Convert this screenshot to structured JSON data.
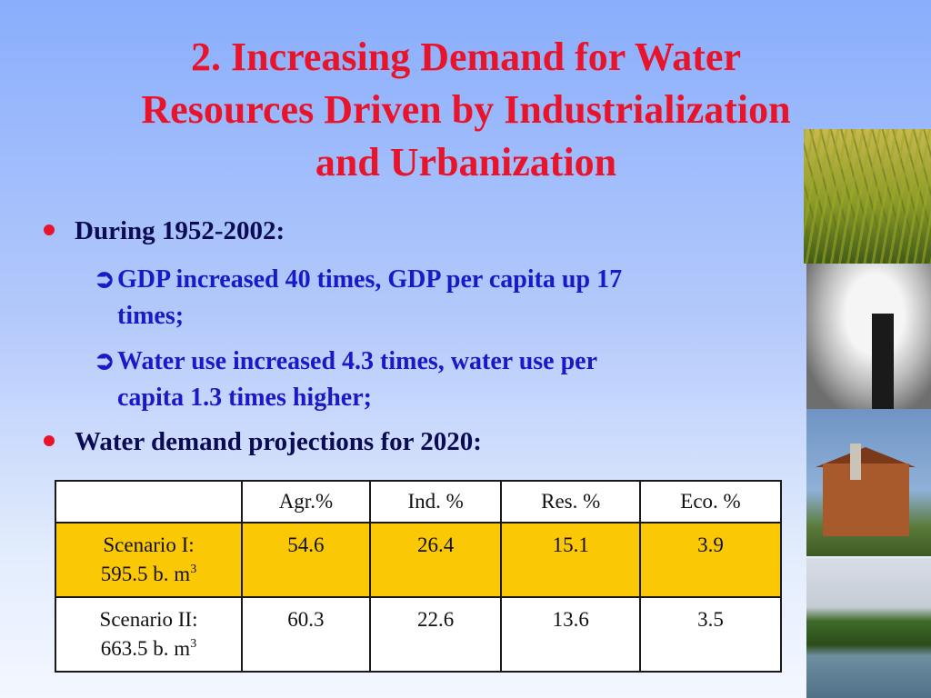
{
  "slide": {
    "title_lines": [
      "2. Increasing Demand for Water",
      "Resources Driven by Industrialization",
      "and Urbanization"
    ],
    "bullets": [
      {
        "text": "During 1952-2002:"
      },
      {
        "text": "Water demand projections for 2020:"
      }
    ],
    "sub_bullets": [
      {
        "line1": "GDP increased 40 times, GDP per capita up 17",
        "line2": "times;"
      },
      {
        "line1": "Water use increased 4.3 times, water use per",
        "line2": "capita  1.3 times higher;"
      }
    ],
    "colors": {
      "title": "#e8142b",
      "bullet_dot": "#e8142b",
      "sub_text": "#1919c8",
      "highlight_row": "#fbc805"
    }
  },
  "table": {
    "headers": [
      "",
      "Agr.%",
      "Ind. %",
      "Res. %",
      "Eco. %"
    ],
    "rows": [
      {
        "scenario": "Scenario I:",
        "volume": "595.5 b. m",
        "unit_exp": "3",
        "values": [
          "54.6",
          "26.4",
          "15.1",
          "3.9"
        ]
      },
      {
        "scenario": "Scenario II:",
        "volume": "663.5 b. m",
        "unit_exp": "3",
        "values": [
          "60.3",
          "22.6",
          "13.6",
          "3.5"
        ]
      }
    ]
  },
  "images": [
    "rice-field-photo",
    "smokestack-photo",
    "building-rainbow-photo",
    "river-photo"
  ]
}
